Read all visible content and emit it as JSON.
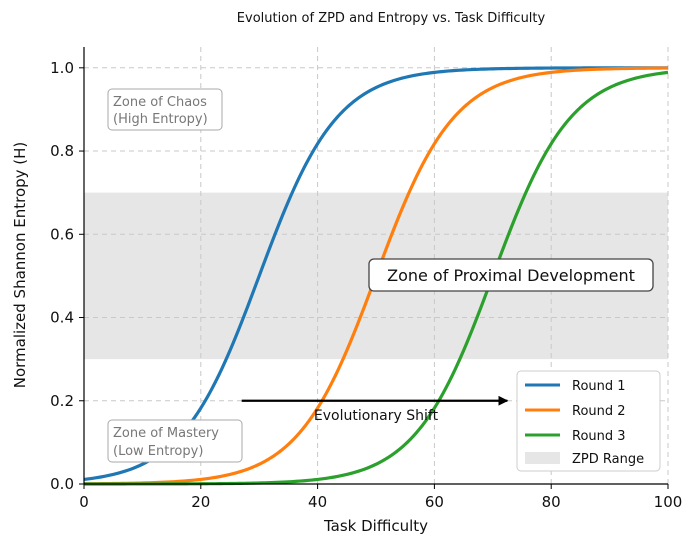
{
  "chart_data": {
    "type": "line",
    "title": "Evolution of ZPD and Entropy vs. Task Difficulty",
    "xlabel": "Task Difficulty",
    "ylabel": "Normalized Shannon Entropy (H)",
    "xlim": [
      0,
      100
    ],
    "ylim": [
      0,
      1.05
    ],
    "grid": true,
    "x_ticks": [
      0,
      20,
      40,
      60,
      80,
      100
    ],
    "y_ticks": [
      0.0,
      0.2,
      0.4,
      0.6,
      0.8,
      1.0
    ],
    "x_tick_labels": [
      "0",
      "20",
      "40",
      "60",
      "80",
      "100"
    ],
    "y_tick_labels": [
      "0.0",
      "0.2",
      "0.4",
      "0.6",
      "0.8",
      "1.0"
    ],
    "series": [
      {
        "name": "Round 1",
        "color": "#1f77b4",
        "curve": "logistic",
        "midpoint": 30,
        "steepness": 0.15
      },
      {
        "name": "Round 2",
        "color": "#ff7f0e",
        "curve": "logistic",
        "midpoint": 50,
        "steepness": 0.15
      },
      {
        "name": "Round 3",
        "color": "#2ca02c",
        "curve": "logistic",
        "midpoint": 70,
        "steepness": 0.15
      }
    ],
    "zpd_range": {
      "name": "ZPD Range",
      "y_min": 0.3,
      "y_max": 0.7,
      "color": "#e6e6e6"
    },
    "annotations": {
      "chaos": {
        "line1": "Zone of Chaos",
        "line2": "(High Entropy)"
      },
      "mastery": {
        "line1": "Zone of Mastery",
        "line2": "(Low Entropy)"
      },
      "zpd": "Zone of Proximal Development",
      "shift": {
        "label": "Evolutionary Shift",
        "x_start": 27,
        "x_end": 73,
        "y": 0.2
      }
    },
    "legend_position": "lower-right"
  }
}
